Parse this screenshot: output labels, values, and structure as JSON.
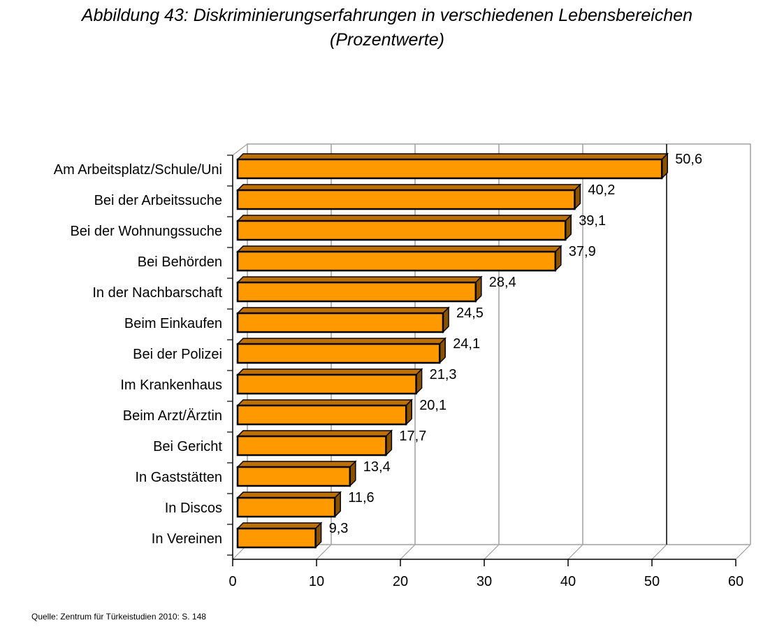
{
  "title_line1": "Abbildung 43: Diskriminierungserfahrungen in verschiedenen Lebensbereichen",
  "title_line2": "(Prozentwerte)",
  "source": "Quelle: Zentrum für Türkeistudien 2010: S. 148",
  "colors": {
    "bar_front": "#FF9900",
    "bar_top": "#C07000",
    "bar_side": "#8A5200",
    "grid": "#A0A0A0",
    "axis": "#000000"
  },
  "chart_data": {
    "type": "bar",
    "orientation": "horizontal",
    "style": "3d",
    "title": "Abbildung 43: Diskriminierungserfahrungen in verschiedenen Lebensbereichen (Prozentwerte)",
    "xlabel": "",
    "ylabel": "",
    "xlim": [
      0,
      60
    ],
    "xticks": [
      0,
      10,
      20,
      30,
      40,
      50,
      60
    ],
    "xtick_labels": [
      "0",
      "10",
      "20",
      "30",
      "40",
      "50",
      "60"
    ],
    "grid": true,
    "legend": "none",
    "categories": [
      "Am Arbeitsplatz/Schule/Uni",
      "Bei der Arbeitssuche",
      "Bei der Wohnungssuche",
      "Bei Behörden",
      "In der Nachbarschaft",
      "Beim Einkaufen",
      "Bei der Polizei",
      "Im Krankenhaus",
      "Beim Arzt/Ärztin",
      "Bei Gericht",
      "In Gaststätten",
      "In Discos",
      "In Vereinen"
    ],
    "values": [
      50.6,
      40.2,
      39.1,
      37.9,
      28.4,
      24.5,
      24.1,
      21.3,
      20.1,
      17.7,
      13.4,
      11.6,
      9.3
    ],
    "value_labels": [
      "50,6",
      "40,2",
      "39,1",
      "37,9",
      "28,4",
      "24,5",
      "24,1",
      "21,3",
      "20,1",
      "17,7",
      "13,4",
      "11,6",
      "9,3"
    ]
  }
}
